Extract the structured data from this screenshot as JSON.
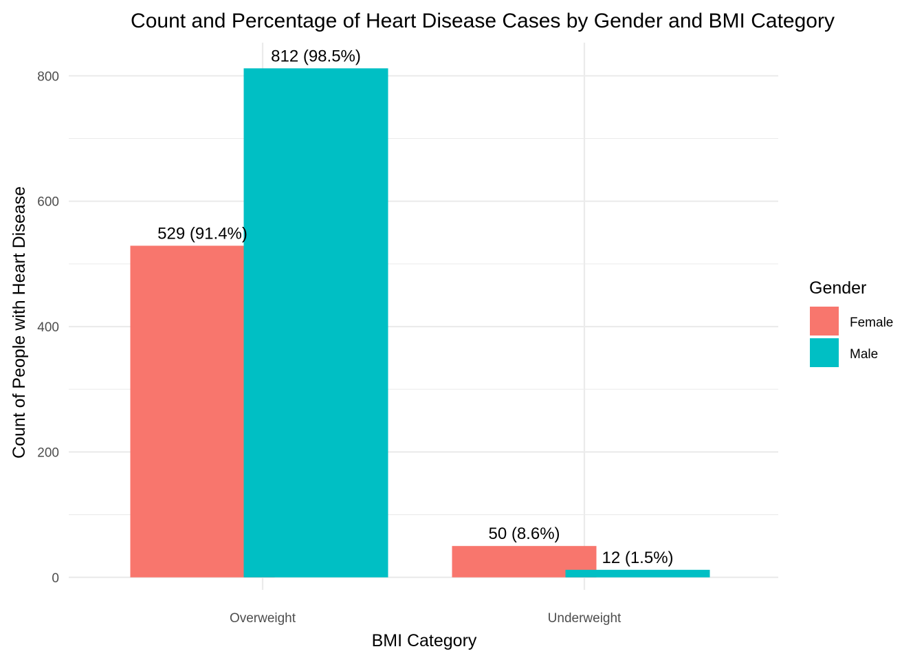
{
  "colors": {
    "female": "#F8766D",
    "male": "#00BFC4",
    "grid": "#ebebeb",
    "tick_text": "#4d4d4d"
  },
  "chart_data": {
    "type": "bar",
    "title": "Count and Percentage of Heart Disease Cases by Gender and BMI Category",
    "xlabel": "BMI Category",
    "ylabel": "Count of People with Heart Disease",
    "categories": [
      "Overweight",
      "Underweight"
    ],
    "series": [
      {
        "name": "Female",
        "color": "#F8766D",
        "values": [
          529,
          50
        ],
        "labels": [
          "529 (91.4%)",
          "50 (8.6%)"
        ]
      },
      {
        "name": "Male",
        "color": "#00BFC4",
        "values": [
          812,
          12
        ],
        "labels": [
          "812 (98.5%)",
          "12 (1.5%)"
        ]
      }
    ],
    "yticks": [
      0,
      200,
      400,
      600,
      800
    ],
    "yticklabels": [
      "0",
      "200",
      "400",
      "600",
      "800"
    ],
    "ylim": [
      -20,
      853
    ],
    "grid": true,
    "legend": {
      "title": "Gender",
      "placement": "right",
      "entries": [
        "Female",
        "Male"
      ]
    }
  }
}
